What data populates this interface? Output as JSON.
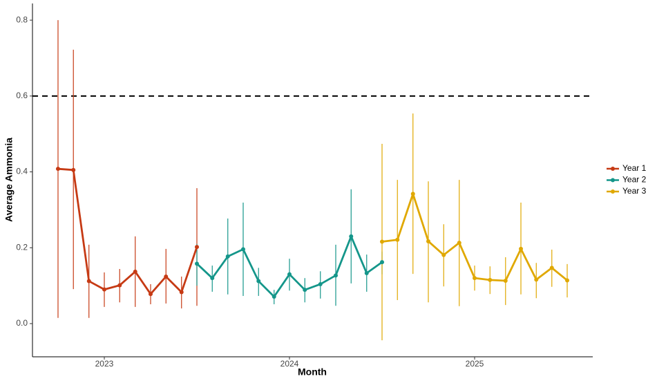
{
  "chart_data": {
    "type": "line",
    "x_label": "Month",
    "y_label": "Average Ammonia",
    "xlim": [
      2022.612,
      2025.638
    ],
    "ylim": [
      -0.0875,
      0.844
    ],
    "xticks": [
      2023,
      2024,
      2025
    ],
    "yticks": [
      {
        "value": 0,
        "label": "0.0"
      },
      0.2,
      0.4,
      0.6,
      0.8
    ],
    "hline": 0.6,
    "legend": "right",
    "series": [
      {
        "name": "Year 1",
        "color": "#c63a14",
        "x": [
          2022.75,
          2022.833,
          2022.917,
          2023,
          2023.083,
          2023.167,
          2023.25,
          2023.333,
          2023.417,
          2023.5
        ],
        "values": [
          0.408,
          0.405,
          0.112,
          0.09,
          0.101,
          0.137,
          0.078,
          0.124,
          0.083,
          0.202
        ],
        "lower": [
          0.015,
          0.091,
          0.015,
          0.044,
          0.056,
          0.044,
          0.051,
          0.053,
          0.04,
          0.047
        ],
        "upper": [
          0.8,
          0.722,
          0.208,
          0.135,
          0.144,
          0.23,
          0.104,
          0.197,
          0.124,
          0.357
        ]
      },
      {
        "name": "Year 2",
        "color": "#14968a",
        "x": [
          2023.5,
          2023.583,
          2023.667,
          2023.75,
          2023.833,
          2023.917,
          2024,
          2024.083,
          2024.167,
          2024.25,
          2024.333,
          2024.417,
          2024.5
        ],
        "values": [
          0.158,
          0.12,
          0.177,
          0.196,
          0.112,
          0.071,
          0.13,
          0.089,
          0.104,
          0.127,
          0.23,
          0.133,
          0.162
        ],
        "lower": [
          0.1,
          0.084,
          0.077,
          0.073,
          0.073,
          0.051,
          0.087,
          0.056,
          0.066,
          0.047,
          0.106,
          0.084,
          0.13
        ],
        "upper": [
          0.21,
          0.153,
          0.277,
          0.319,
          0.147,
          0.089,
          0.171,
          0.12,
          0.138,
          0.208,
          0.354,
          0.182,
          0.19
        ]
      },
      {
        "name": "Year 3",
        "color": "#e0a800",
        "x": [
          2024.5,
          2024.583,
          2024.667,
          2024.75,
          2024.833,
          2024.917,
          2025,
          2025.083,
          2025.167,
          2025.25,
          2025.333,
          2025.417,
          2025.5
        ],
        "values": [
          0.216,
          0.221,
          0.342,
          0.217,
          0.181,
          0.213,
          0.12,
          0.115,
          0.113,
          0.197,
          0.116,
          0.147,
          0.114
        ],
        "lower": [
          -0.044,
          0.062,
          0.131,
          0.056,
          0.098,
          0.046,
          0.087,
          0.078,
          0.049,
          0.077,
          0.067,
          0.097,
          0.069
        ],
        "upper": [
          0.474,
          0.379,
          0.554,
          0.375,
          0.262,
          0.379,
          0.153,
          0.151,
          0.175,
          0.319,
          0.16,
          0.195,
          0.157
        ]
      }
    ]
  }
}
